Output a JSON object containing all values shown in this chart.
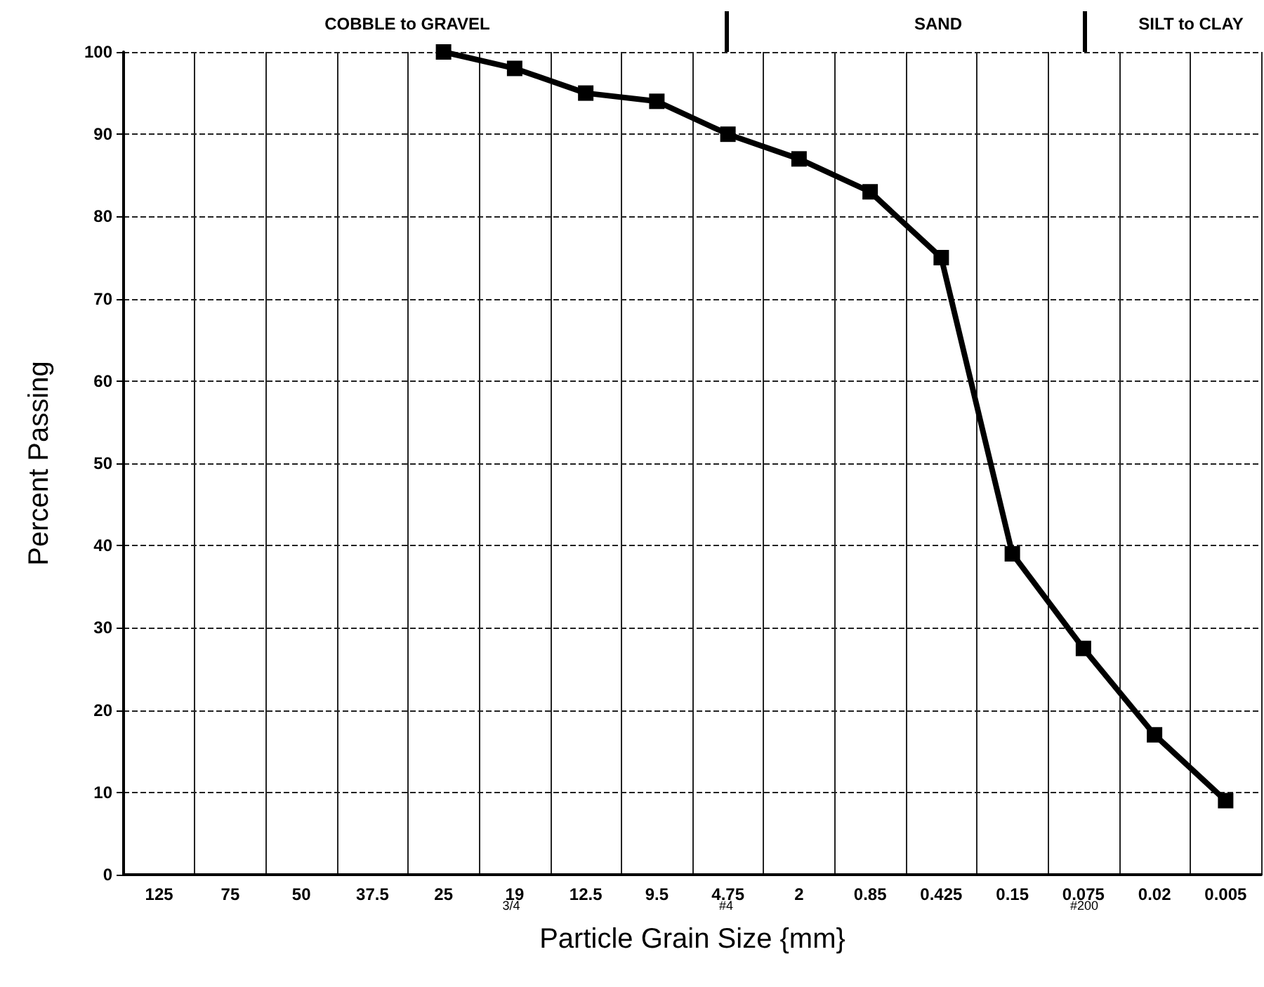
{
  "chart_data": {
    "type": "line",
    "xlabel": "Particle Grain Size {mm}",
    "ylabel": "Percent Passing",
    "categories": [
      "125",
      "75",
      "50",
      "37.5",
      "25",
      "19",
      "12.5",
      "9.5",
      "4.75",
      "2",
      "0.85",
      "0.425",
      "0.15",
      "0.075",
      "0.02",
      "0.005"
    ],
    "series": [
      {
        "color": "#000000",
        "values": [
          null,
          null,
          null,
          null,
          100,
          98,
          95,
          94,
          90,
          87,
          83,
          75,
          39,
          27.5,
          17,
          9
        ]
      }
    ],
    "ylim": [
      0,
      100
    ],
    "yticks": [
      0,
      10,
      20,
      30,
      40,
      50,
      60,
      70,
      80,
      90,
      100
    ],
    "grid": true,
    "marker": "square",
    "line_style": "solid",
    "annotations": [
      "COBBLE to GRAVEL",
      "SAND",
      "SILT to CLAY",
      "3/4",
      "#4",
      "#200"
    ]
  }
}
